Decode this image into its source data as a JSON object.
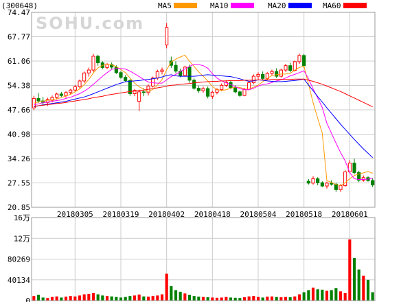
{
  "watermark": "SOHU.com",
  "stock_code": "(300648)",
  "legend": [
    {
      "label": "MA5",
      "color": "#ff9900"
    },
    {
      "label": "MA10",
      "color": "#ff00ff"
    },
    {
      "label": "MA20",
      "color": "#0000ff"
    },
    {
      "label": "MA60",
      "color": "#ff0000"
    }
  ],
  "colors": {
    "up": "#ff0000",
    "down": "#008000",
    "grid": "#cccccc",
    "frame": "#999999"
  },
  "chart_data": [
    {
      "type": "candlestick",
      "title": "(300648)",
      "ylim": [
        20.85,
        74.47
      ],
      "y_ticks": [
        "74.47",
        "67.77",
        "61.06",
        "54.38",
        "47.66",
        "40.98",
        "34.26",
        "27.55",
        "20.85"
      ],
      "date_labels": [
        {
          "label": "20180305",
          "index": 9
        },
        {
          "label": "20180319",
          "index": 19
        },
        {
          "label": "20180402",
          "index": 29
        },
        {
          "label": "20180418",
          "index": 39
        },
        {
          "label": "20180504",
          "index": 49
        },
        {
          "label": "20180518",
          "index": 59
        },
        {
          "label": "20180601",
          "index": 69
        }
      ],
      "ohlc": [
        [
          48.2,
          51.5,
          47.6,
          50.8
        ],
        [
          50.8,
          52.3,
          49.6,
          50.1
        ],
        [
          50.1,
          51.2,
          48.9,
          49.7
        ],
        [
          49.7,
          51.0,
          48.7,
          50.5
        ],
        [
          50.3,
          51.6,
          49.7,
          51.1
        ],
        [
          51.1,
          52.4,
          50.5,
          52.0
        ],
        [
          52.0,
          52.6,
          51.2,
          51.6
        ],
        [
          51.6,
          52.8,
          51.0,
          52.4
        ],
        [
          52.4,
          53.4,
          51.9,
          53.1
        ],
        [
          53.1,
          54.5,
          52.7,
          54.0
        ],
        [
          54.0,
          56.0,
          53.6,
          55.6
        ],
        [
          55.6,
          58.2,
          55.0,
          57.8
        ],
        [
          57.8,
          59.3,
          56.8,
          58.6
        ],
        [
          58.6,
          63.0,
          58.0,
          62.4
        ],
        [
          62.4,
          62.8,
          59.8,
          60.6
        ],
        [
          60.6,
          61.0,
          58.8,
          59.3
        ],
        [
          59.3,
          60.5,
          58.8,
          60.1
        ],
        [
          60.1,
          60.7,
          58.9,
          59.4
        ],
        [
          59.4,
          59.9,
          57.5,
          57.9
        ],
        [
          57.9,
          58.4,
          56.2,
          56.6
        ],
        [
          56.6,
          57.2,
          55.3,
          55.7
        ],
        [
          55.7,
          56.1,
          51.5,
          52.1
        ],
        [
          52.1,
          53.4,
          51.4,
          53.0
        ],
        [
          50.0,
          53.2,
          47.3,
          52.6
        ],
        [
          52.6,
          53.6,
          51.4,
          52.4
        ],
        [
          52.4,
          54.7,
          51.6,
          54.2
        ],
        [
          54.2,
          56.8,
          53.8,
          56.4
        ],
        [
          56.4,
          58.7,
          55.9,
          58.2
        ],
        [
          58.2,
          59.3,
          57.4,
          58.6
        ],
        [
          65.5,
          71.5,
          64.6,
          70.3
        ],
        [
          61.1,
          62.3,
          59.2,
          59.9
        ],
        [
          59.9,
          61.0,
          57.7,
          58.3
        ],
        [
          58.3,
          59.0,
          56.6,
          57.1
        ],
        [
          57.1,
          59.8,
          56.9,
          59.4
        ],
        [
          59.4,
          60.1,
          55.1,
          55.8
        ],
        [
          55.8,
          56.3,
          53.2,
          53.6
        ],
        [
          53.6,
          54.3,
          52.3,
          52.9
        ],
        [
          52.9,
          54.0,
          52.4,
          53.5
        ],
        [
          53.5,
          54.1,
          50.8,
          51.4
        ],
        [
          51.4,
          52.9,
          50.7,
          52.5
        ],
        [
          52.5,
          53.6,
          51.9,
          53.2
        ],
        [
          53.2,
          54.9,
          52.8,
          54.4
        ],
        [
          54.4,
          55.8,
          53.9,
          55.2
        ],
        [
          55.2,
          55.8,
          53.3,
          53.8
        ],
        [
          53.8,
          54.4,
          52.2,
          52.6
        ],
        [
          52.6,
          53.0,
          51.2,
          51.6
        ],
        [
          51.6,
          53.7,
          51.4,
          53.3
        ],
        [
          53.3,
          55.6,
          53.0,
          55.1
        ],
        [
          55.1,
          57.4,
          54.7,
          56.9
        ],
        [
          56.9,
          58.0,
          56.0,
          57.4
        ],
        [
          57.4,
          58.2,
          55.9,
          56.3
        ],
        [
          56.3,
          58.0,
          55.9,
          57.7
        ],
        [
          57.7,
          58.7,
          57.1,
          58.2
        ],
        [
          58.2,
          59.1,
          56.4,
          56.9
        ],
        [
          56.9,
          59.0,
          56.5,
          58.6
        ],
        [
          58.6,
          60.3,
          58.1,
          59.8
        ],
        [
          59.8,
          60.6,
          58.0,
          58.5
        ],
        [
          58.5,
          61.2,
          58.2,
          60.9
        ],
        [
          60.9,
          63.2,
          60.3,
          62.6
        ],
        [
          62.6,
          63.0,
          59.2,
          59.8
        ],
        [
          28.0,
          28.6,
          27.1,
          27.5
        ],
        [
          27.5,
          29.4,
          27.1,
          28.7
        ],
        [
          28.7,
          29.1,
          26.9,
          27.6
        ],
        [
          27.6,
          28.0,
          26.4,
          26.7
        ],
        [
          26.7,
          27.9,
          26.0,
          27.5
        ],
        [
          27.5,
          28.3,
          26.8,
          27.2
        ],
        [
          27.2,
          27.5,
          25.1,
          25.7
        ],
        [
          25.7,
          27.2,
          25.1,
          26.8
        ],
        [
          26.8,
          31.0,
          26.5,
          30.6
        ],
        [
          30.6,
          33.8,
          30.2,
          33.0
        ],
        [
          33.0,
          34.2,
          29.9,
          30.4
        ],
        [
          30.4,
          30.9,
          27.8,
          28.3
        ],
        [
          28.3,
          29.6,
          27.9,
          29.0
        ],
        [
          29.0,
          29.4,
          27.9,
          28.2
        ],
        [
          28.2,
          28.8,
          26.4,
          27.0
        ]
      ],
      "ma5": [
        49.5,
        49.8,
        50.0,
        50.3,
        50.4,
        50.7,
        51.0,
        51.5,
        51.9,
        52.6,
        53.4,
        54.6,
        56.0,
        57.8,
        59.2,
        59.9,
        60.2,
        60.0,
        59.6,
        58.7,
        57.9,
        56.4,
        55.0,
        54.0,
        53.3,
        52.7,
        53.3,
        54.5,
        56.0,
        58.7,
        60.8,
        61.6,
        62.2,
        62.7,
        61.0,
        59.6,
        58.1,
        56.9,
        55.6,
        54.1,
        53.2,
        53.0,
        53.2,
        53.6,
        53.9,
        53.8,
        53.4,
        53.3,
        53.9,
        54.5,
        55.4,
        56.3,
        57.1,
        57.3,
        57.5,
        57.5,
        57.7,
        58.6,
        59.3,
        59.7,
        54.7,
        49.6,
        45.3,
        41.3,
        28.2,
        27.7,
        27.1,
        26.8,
        27.6,
        28.7,
        29.6,
        30.0,
        30.3,
        30.7,
        30.2
      ],
      "ma10": [
        49.0,
        49.3,
        49.6,
        49.8,
        50.0,
        50.2,
        50.4,
        50.8,
        51.1,
        51.6,
        52.1,
        52.8,
        53.6,
        54.7,
        55.8,
        56.9,
        57.9,
        58.8,
        59.0,
        59.0,
        58.9,
        58.3,
        57.6,
        56.8,
        56.0,
        55.3,
        55.1,
        55.0,
        55.0,
        55.9,
        56.8,
        57.4,
        58.2,
        58.9,
        59.6,
        60.2,
        60.1,
        59.8,
        59.1,
        57.6,
        56.4,
        55.6,
        55.1,
        54.6,
        54.0,
        53.5,
        53.2,
        53.2,
        53.6,
        54.2,
        54.6,
        54.8,
        55.2,
        55.6,
        55.9,
        56.4,
        57.0,
        57.4,
        57.9,
        58.4,
        56.2,
        53.4,
        50.9,
        48.3,
        44.0,
        41.2,
        38.5,
        35.9,
        33.6,
        30.4,
        28.7,
        28.5,
        28.5,
        28.6,
        28.9
      ],
      "ma20": [
        48.5,
        48.8,
        49.0,
        49.2,
        49.4,
        49.6,
        49.8,
        50.0,
        50.3,
        50.6,
        50.9,
        51.2,
        51.6,
        52.1,
        52.6,
        53.1,
        53.6,
        54.1,
        54.6,
        55.0,
        55.4,
        55.5,
        55.6,
        55.7,
        55.9,
        56.0,
        56.2,
        56.4,
        56.7,
        57.1,
        57.3,
        57.0,
        56.9,
        56.9,
        56.9,
        56.9,
        57.0,
        57.2,
        57.3,
        57.2,
        57.1,
        57.0,
        56.9,
        56.8,
        56.5,
        56.2,
        55.8,
        55.5,
        55.6,
        55.9,
        55.8,
        55.6,
        55.5,
        55.4,
        55.4,
        55.5,
        55.6,
        55.7,
        55.9,
        56.1,
        54.5,
        52.9,
        51.3,
        49.8,
        48.2,
        46.7,
        45.2,
        43.7,
        42.3,
        40.9,
        39.5,
        38.2,
        36.9,
        35.7,
        34.5
      ],
      "ma60": [
        48.6,
        48.8,
        48.9,
        49.1,
        49.2,
        49.4,
        49.5,
        49.7,
        49.9,
        50.1,
        50.3,
        50.5,
        50.7,
        51.0,
        51.2,
        51.4,
        51.7,
        51.9,
        52.1,
        52.3,
        52.5,
        52.7,
        52.8,
        53.0,
        53.1,
        53.3,
        53.5,
        53.7,
        53.9,
        54.2,
        54.4,
        54.5,
        54.7,
        54.8,
        54.9,
        55.1,
        55.2,
        55.3,
        55.4,
        55.5,
        55.5,
        55.6,
        55.6,
        55.7,
        55.7,
        55.7,
        55.8,
        55.8,
        55.8,
        55.9,
        55.9,
        55.9,
        56.0,
        56.0,
        56.0,
        56.0,
        56.0,
        56.1,
        56.1,
        56.1,
        55.8,
        55.5,
        55.1,
        54.7,
        54.2,
        53.7,
        53.2,
        52.7,
        52.1,
        51.5,
        50.9,
        50.3,
        49.7,
        49.1,
        48.5
      ]
    },
    {
      "type": "bar",
      "title": "volume",
      "ylim": [
        0,
        160000
      ],
      "y_ticks": [
        "16万",
        "12万",
        "80269",
        "40134",
        "0"
      ],
      "values": [
        9000,
        11000,
        6000,
        5000,
        7000,
        8000,
        6000,
        7500,
        9000,
        8000,
        10000,
        12000,
        13000,
        14500,
        12000,
        10000,
        9000,
        8000,
        7000,
        6000,
        7000,
        9000,
        10000,
        11500,
        8000,
        7500,
        9000,
        10000,
        12000,
        52000,
        28000,
        20000,
        17000,
        14000,
        11000,
        9000,
        7500,
        7000,
        6500,
        6000,
        5500,
        6000,
        7000,
        6000,
        5500,
        5000,
        6500,
        8000,
        9000,
        7000,
        6000,
        7500,
        8000,
        7000,
        6500,
        7000,
        6500,
        8000,
        12000,
        16000,
        20000,
        25000,
        22000,
        21000,
        19000,
        20000,
        24000,
        18000,
        14500,
        118000,
        82000,
        60000,
        48000,
        40000,
        16000
      ]
    }
  ]
}
